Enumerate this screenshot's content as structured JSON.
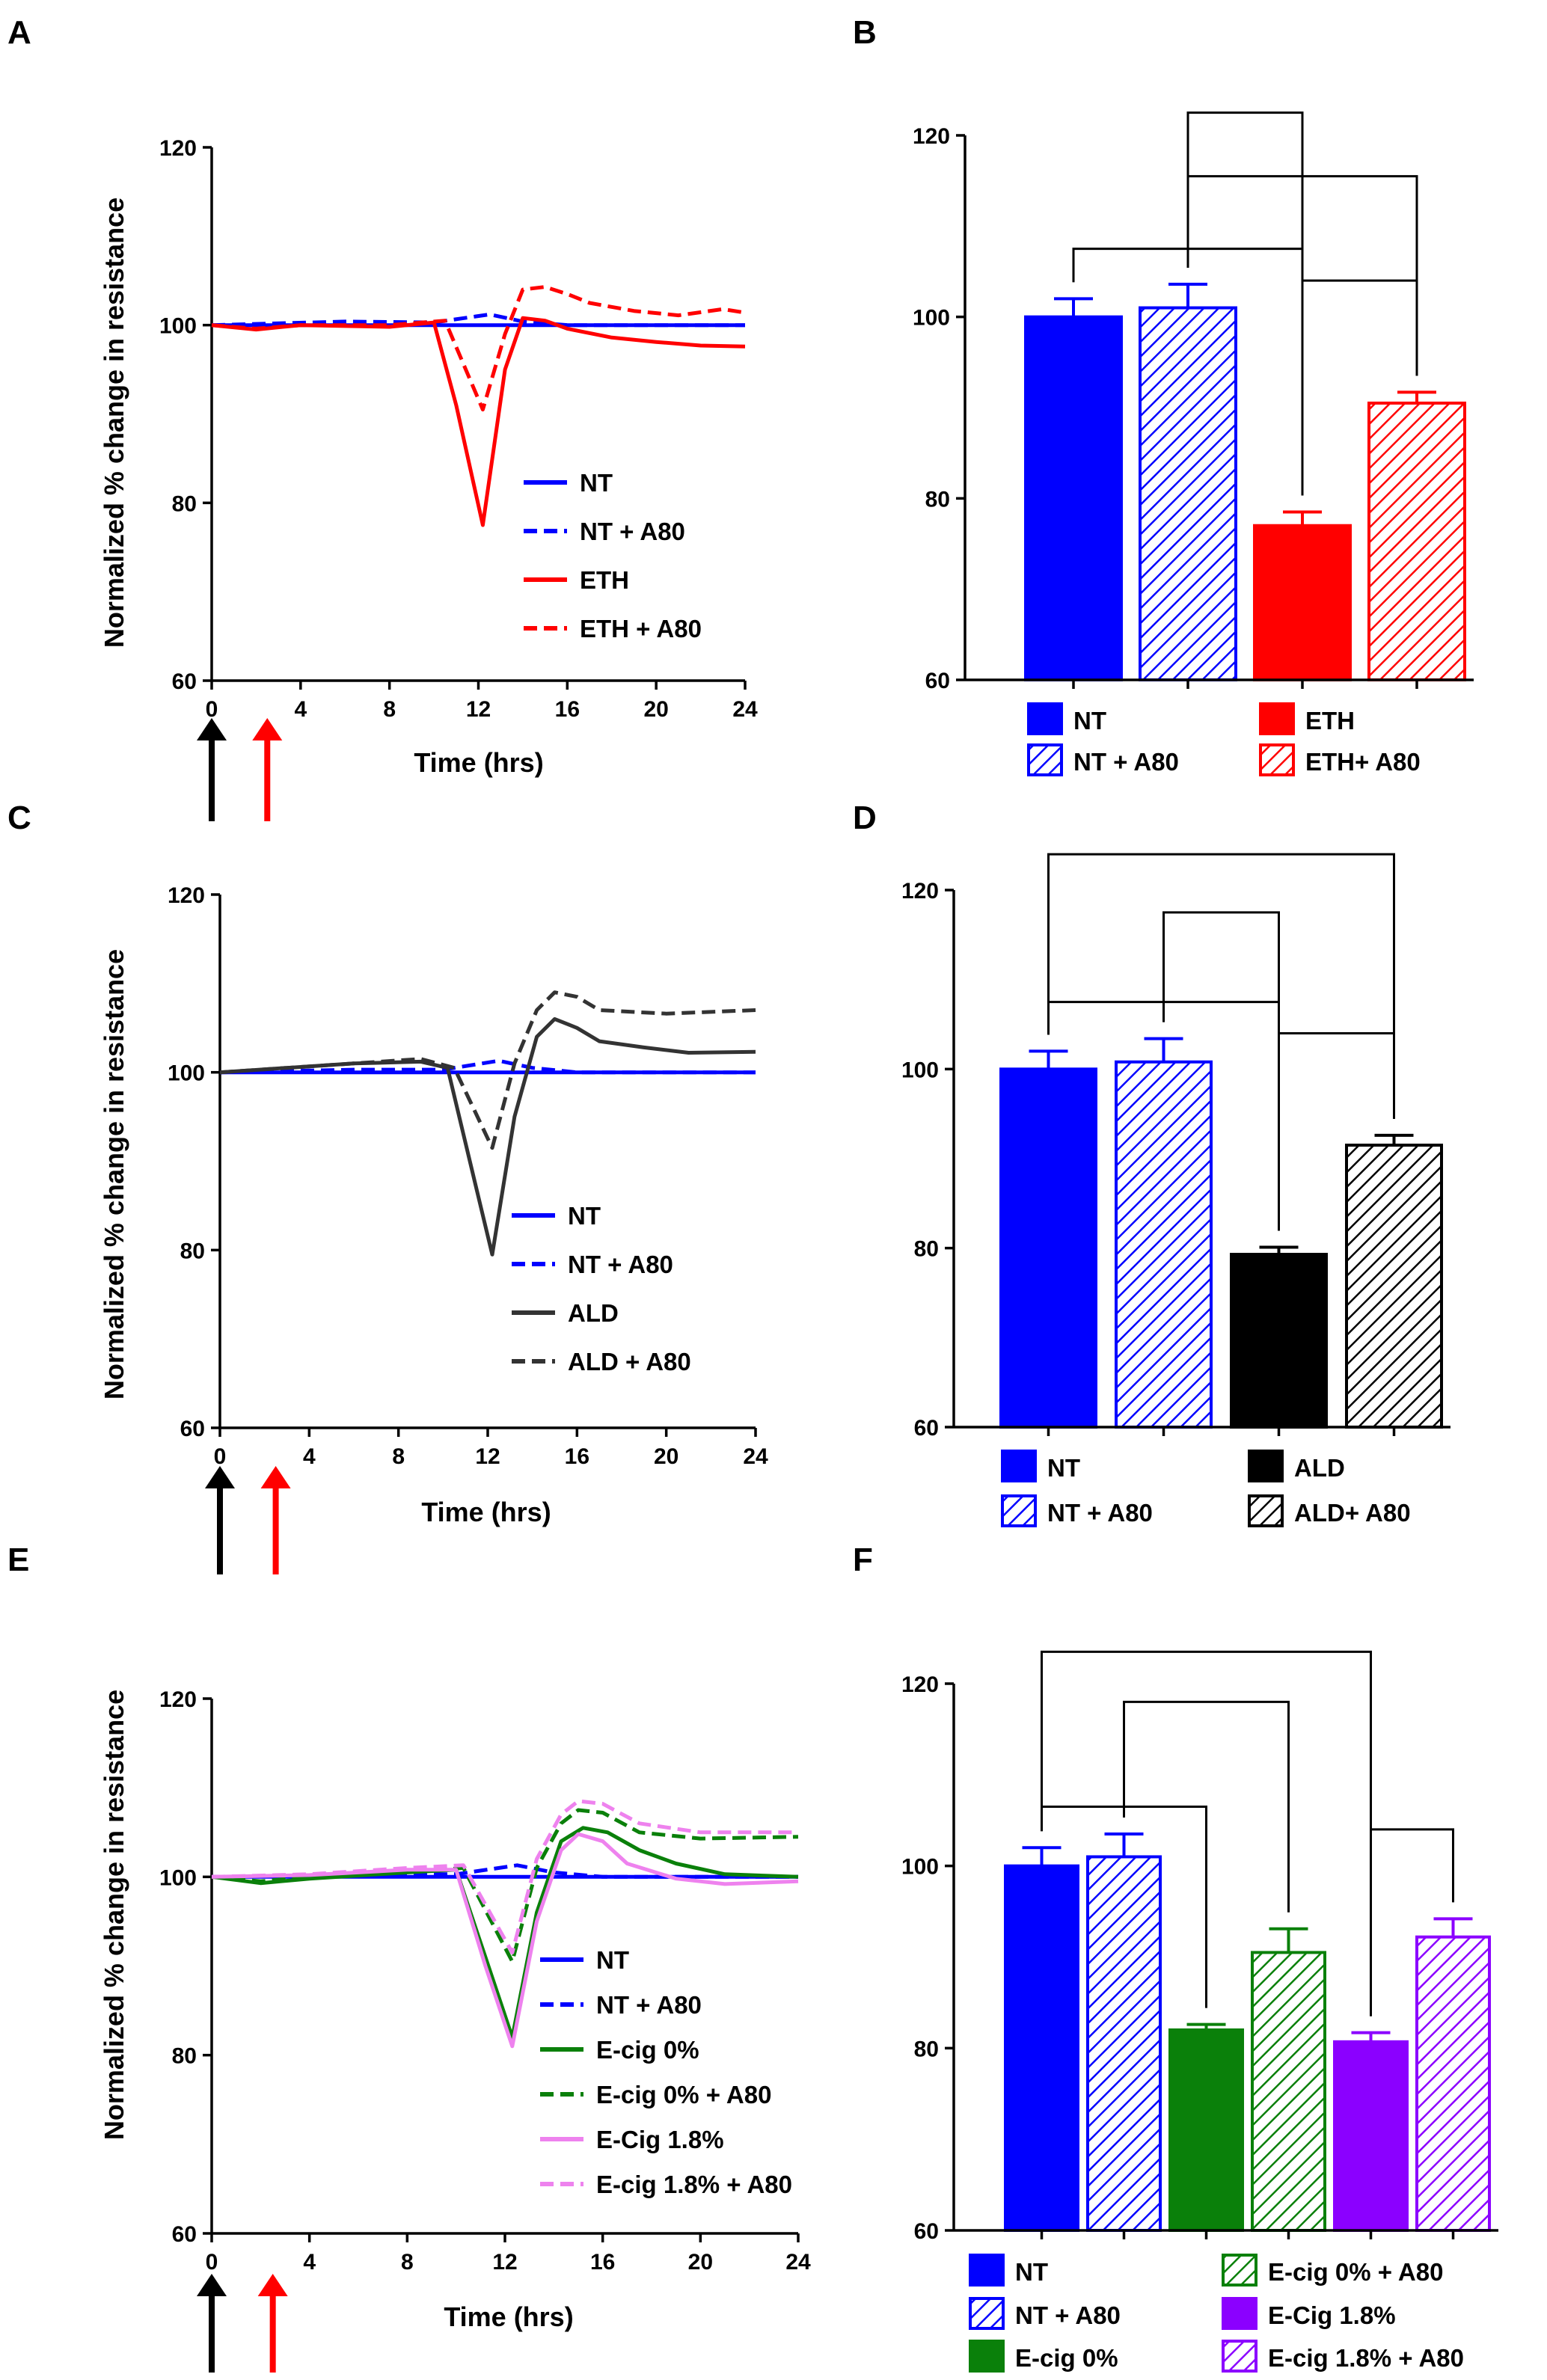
{
  "panels": [
    {
      "letter": "A",
      "type": "line",
      "ylabel": "Normalized % change in resistance",
      "xlabel": "Time (hrs)",
      "ylim": [
        60,
        120
      ],
      "yticks": [
        60,
        80,
        100,
        120
      ],
      "xlim": [
        0,
        24
      ],
      "xticks": [
        0,
        4,
        8,
        12,
        16,
        20,
        24
      ],
      "arrows": [
        {
          "t": 0,
          "color": "#000000"
        },
        {
          "t": 2.5,
          "color": "#ff0000"
        }
      ],
      "series": [
        {
          "name": "NT",
          "color": "#0000ff",
          "dash": false,
          "pts": [
            [
              0,
              100
            ],
            [
              24,
              100
            ]
          ]
        },
        {
          "name": "NT + A80",
          "color": "#0000ff",
          "dash": true,
          "pts": [
            [
              0,
              100
            ],
            [
              6,
              100.4
            ],
            [
              10,
              100.3
            ],
            [
              12.5,
              101.2
            ],
            [
              14,
              100.4
            ],
            [
              16,
              100
            ],
            [
              24,
              100
            ]
          ]
        },
        {
          "name": "ETH",
          "color": "#ff0000",
          "dash": false,
          "pts": [
            [
              0,
              100
            ],
            [
              2,
              99.5
            ],
            [
              4,
              100
            ],
            [
              8,
              99.8
            ],
            [
              10,
              100.3
            ],
            [
              11,
              91
            ],
            [
              12.2,
              77.5
            ],
            [
              13.2,
              95
            ],
            [
              14,
              100.8
            ],
            [
              15,
              100.5
            ],
            [
              16,
              99.6
            ],
            [
              18,
              98.6
            ],
            [
              20,
              98.1
            ],
            [
              22,
              97.7
            ],
            [
              24,
              97.6
            ]
          ]
        },
        {
          "name": "ETH + A80",
          "color": "#ff0000",
          "dash": true,
          "pts": [
            [
              0,
              100
            ],
            [
              2,
              99.6
            ],
            [
              4,
              100
            ],
            [
              8,
              100
            ],
            [
              10.5,
              100.5
            ],
            [
              12.2,
              90.5
            ],
            [
              13.2,
              99
            ],
            [
              14,
              104
            ],
            [
              15,
              104.3
            ],
            [
              16,
              103.5
            ],
            [
              17,
              102.5
            ],
            [
              19,
              101.6
            ],
            [
              21,
              101.1
            ],
            [
              23,
              101.8
            ],
            [
              24,
              101.4
            ]
          ]
        }
      ]
    },
    {
      "letter": "B",
      "type": "bar",
      "ylim": [
        60,
        120
      ],
      "yticks": [
        60,
        80,
        100,
        120
      ],
      "bars": [
        {
          "name": "NT",
          "value": 100,
          "err": 2,
          "color": "#0000ff",
          "hatched": false
        },
        {
          "name": "NT + A80",
          "value": 101,
          "err": 2.6,
          "color": "#0000ff",
          "hatched": true
        },
        {
          "name": "ETH",
          "value": 77,
          "err": 1.5,
          "color": "#ff0000",
          "hatched": false
        },
        {
          "name": "ETH+ A80",
          "value": 90.5,
          "err": 1.2,
          "color": "#ff0000",
          "hatched": true
        }
      ],
      "brackets": [
        [
          1,
          2,
          122.5
        ],
        [
          1,
          3,
          115.5
        ],
        [
          0,
          2,
          107.5
        ],
        [
          2,
          3,
          104
        ]
      ]
    },
    {
      "letter": "C",
      "type": "line",
      "ylabel": "Normalized % change in resistance",
      "xlabel": "Time (hrs)",
      "ylim": [
        60,
        120
      ],
      "yticks": [
        60,
        80,
        100,
        120
      ],
      "xlim": [
        0,
        24
      ],
      "xticks": [
        0,
        4,
        8,
        12,
        16,
        20,
        24
      ],
      "arrows": [
        {
          "t": 0,
          "color": "#000000"
        },
        {
          "t": 2.5,
          "color": "#ff0000"
        }
      ],
      "series": [
        {
          "name": "NT",
          "color": "#0000ff",
          "dash": false,
          "pts": [
            [
              0,
              100
            ],
            [
              24,
              100
            ]
          ]
        },
        {
          "name": "NT + A80",
          "color": "#0000ff",
          "dash": true,
          "pts": [
            [
              0,
              100
            ],
            [
              6,
              100.3
            ],
            [
              10,
              100.3
            ],
            [
              12.5,
              101.3
            ],
            [
              14,
              100.5
            ],
            [
              16,
              100
            ],
            [
              24,
              100
            ]
          ]
        },
        {
          "name": "ALD",
          "color": "#333333",
          "dash": false,
          "pts": [
            [
              0,
              100
            ],
            [
              3,
              100.5
            ],
            [
              6,
              101
            ],
            [
              9,
              101.2
            ],
            [
              10.2,
              100.5
            ],
            [
              11.2,
              90
            ],
            [
              12.2,
              79.5
            ],
            [
              13.2,
              95
            ],
            [
              14.2,
              104
            ],
            [
              15,
              106
            ],
            [
              16,
              105
            ],
            [
              17,
              103.5
            ],
            [
              19,
              102.8
            ],
            [
              21,
              102.2
            ],
            [
              24,
              102.3
            ]
          ]
        },
        {
          "name": "ALD + A80",
          "color": "#333333",
          "dash": true,
          "pts": [
            [
              0,
              100
            ],
            [
              3,
              100.5
            ],
            [
              6,
              101
            ],
            [
              9,
              101.5
            ],
            [
              10.5,
              100.5
            ],
            [
              12.2,
              91.5
            ],
            [
              13.2,
              101
            ],
            [
              14.2,
              107
            ],
            [
              15,
              109
            ],
            [
              16,
              108.5
            ],
            [
              17,
              107
            ],
            [
              20,
              106.6
            ],
            [
              24,
              107
            ]
          ]
        }
      ]
    },
    {
      "letter": "D",
      "type": "bar",
      "ylim": [
        60,
        120
      ],
      "yticks": [
        60,
        80,
        100,
        120
      ],
      "bars": [
        {
          "name": "NT",
          "value": 100,
          "err": 2,
          "color": "#0000ff",
          "hatched": false
        },
        {
          "name": "NT + A80",
          "value": 100.8,
          "err": 2.6,
          "color": "#0000ff",
          "hatched": true
        },
        {
          "name": "ALD",
          "value": 79.3,
          "err": 0.8,
          "color": "#000000",
          "hatched": false
        },
        {
          "name": "ALD+ A80",
          "value": 91.5,
          "err": 1.1,
          "color": "#000000",
          "hatched": true
        }
      ],
      "brackets": [
        [
          0,
          3,
          124
        ],
        [
          1,
          2,
          117.5
        ],
        [
          0,
          2,
          107.5
        ],
        [
          2,
          3,
          104
        ]
      ]
    },
    {
      "letter": "E",
      "type": "line",
      "ylabel": "Normalized % change in resistance",
      "xlabel": "Time (hrs)",
      "ylim": [
        60,
        120
      ],
      "yticks": [
        60,
        80,
        100,
        120
      ],
      "xlim": [
        0,
        24
      ],
      "xticks": [
        0,
        4,
        8,
        12,
        16,
        20,
        24
      ],
      "arrows": [
        {
          "t": 0,
          "color": "#000000"
        },
        {
          "t": 2.5,
          "color": "#ff0000"
        }
      ],
      "series": [
        {
          "name": "NT",
          "color": "#0000ff",
          "dash": false,
          "pts": [
            [
              0,
              100
            ],
            [
              24,
              100
            ]
          ]
        },
        {
          "name": "NT + A80",
          "color": "#0000ff",
          "dash": true,
          "pts": [
            [
              0,
              100
            ],
            [
              6,
              100.3
            ],
            [
              10,
              100.3
            ],
            [
              12.5,
              101.3
            ],
            [
              14,
              100.5
            ],
            [
              16,
              100
            ],
            [
              24,
              100
            ]
          ]
        },
        {
          "name": "E-cig 0%",
          "color": "#0a800a",
          "dash": false,
          "pts": [
            [
              0,
              100
            ],
            [
              2,
              99.3
            ],
            [
              4,
              99.8
            ],
            [
              8,
              100.5
            ],
            [
              10,
              100.8
            ],
            [
              11.2,
              91
            ],
            [
              12.3,
              82
            ],
            [
              13.3,
              96
            ],
            [
              14.3,
              104
            ],
            [
              15.2,
              105.5
            ],
            [
              16.2,
              105
            ],
            [
              17.5,
              103
            ],
            [
              19,
              101.5
            ],
            [
              21,
              100.3
            ],
            [
              24,
              100
            ]
          ]
        },
        {
          "name": "E-cig 0% + A80",
          "color": "#0a800a",
          "dash": true,
          "pts": [
            [
              0,
              100
            ],
            [
              2,
              99.5
            ],
            [
              4,
              100
            ],
            [
              8,
              100.5
            ],
            [
              10.3,
              101
            ],
            [
              12.3,
              90.5
            ],
            [
              13.3,
              101
            ],
            [
              14.3,
              106
            ],
            [
              15,
              107.5
            ],
            [
              16,
              107.2
            ],
            [
              17.5,
              105
            ],
            [
              20,
              104.3
            ],
            [
              24,
              104.5
            ]
          ]
        },
        {
          "name": "E-Cig 1.8%",
          "color": "#ee82ee",
          "dash": false,
          "pts": [
            [
              0,
              100
            ],
            [
              4,
              100.2
            ],
            [
              8,
              100.8
            ],
            [
              10,
              100.8
            ],
            [
              11.2,
              90
            ],
            [
              12.3,
              81
            ],
            [
              13.3,
              95
            ],
            [
              14.3,
              103
            ],
            [
              15,
              104.8
            ],
            [
              16,
              104
            ],
            [
              17,
              101.5
            ],
            [
              19,
              99.8
            ],
            [
              21,
              99.2
            ],
            [
              24,
              99.5
            ]
          ]
        },
        {
          "name": "E-cig 1.8% + A80",
          "color": "#ee82ee",
          "dash": true,
          "pts": [
            [
              0,
              100
            ],
            [
              4,
              100.3
            ],
            [
              8,
              101
            ],
            [
              10.3,
              101.3
            ],
            [
              12.3,
              91.5
            ],
            [
              13.3,
              102
            ],
            [
              14.3,
              107
            ],
            [
              15,
              108.5
            ],
            [
              16,
              108.2
            ],
            [
              17.5,
              106
            ],
            [
              20,
              105
            ],
            [
              24,
              105
            ]
          ]
        }
      ]
    },
    {
      "letter": "F",
      "type": "bar",
      "ylim": [
        60,
        120
      ],
      "yticks": [
        60,
        80,
        100,
        120
      ],
      "bars": [
        {
          "name": "NT",
          "value": 100,
          "err": 2,
          "color": "#0000ff",
          "hatched": false
        },
        {
          "name": "NT + A80",
          "value": 101,
          "err": 2.5,
          "color": "#0000ff",
          "hatched": true
        },
        {
          "name": "E-cig 0%",
          "value": 82,
          "err": 0.6,
          "color": "#0a800a",
          "hatched": false
        },
        {
          "name": "E-cig 0% + A80",
          "value": 90.5,
          "err": 2.6,
          "color": "#0a800a",
          "hatched": true
        },
        {
          "name": "E-Cig 1.8%",
          "value": 80.7,
          "err": 1,
          "color": "#8b00ff",
          "hatched": false
        },
        {
          "name": "E-cig 1.8% + A80",
          "value": 92.2,
          "err": 2,
          "color": "#8b00ff",
          "hatched": true
        }
      ],
      "brackets": [
        [
          0,
          4,
          123.5
        ],
        [
          1,
          3,
          118
        ],
        [
          0,
          2,
          106.5
        ],
        [
          4,
          5,
          104
        ]
      ]
    }
  ]
}
